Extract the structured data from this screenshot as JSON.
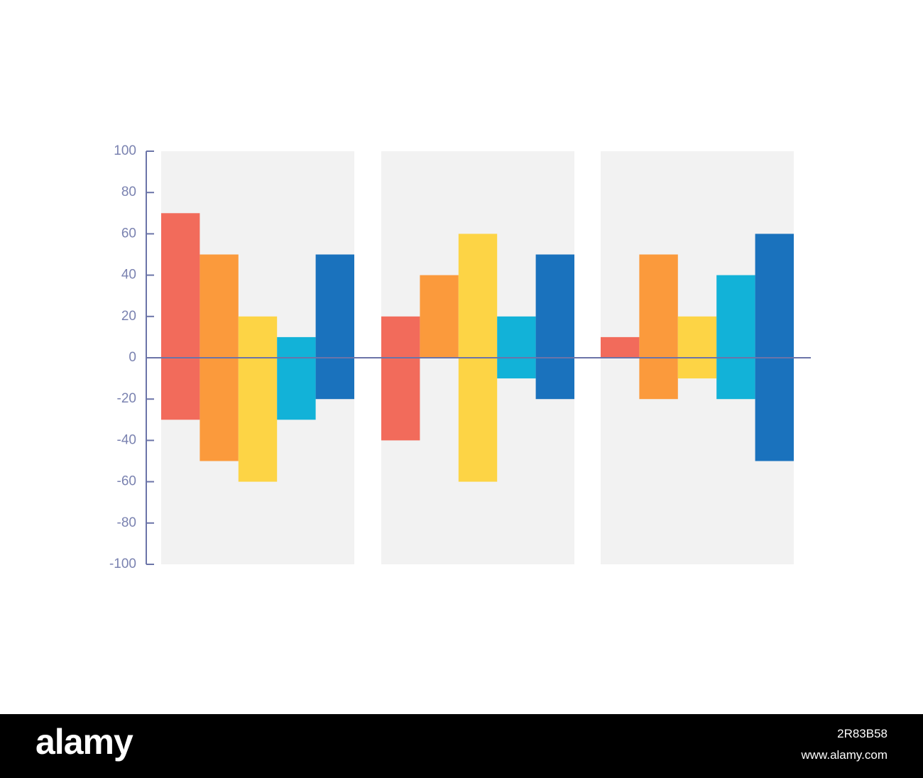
{
  "chart_data": {
    "type": "range_bar",
    "categories": [
      null,
      null,
      null
    ],
    "series": [
      {
        "color": "#f26b5b",
        "low": [
          -30,
          -40,
          0
        ],
        "high": [
          70,
          20,
          10
        ]
      },
      {
        "color": "#fb9a3c",
        "low": [
          -50,
          0,
          -20
        ],
        "high": [
          50,
          40,
          50
        ]
      },
      {
        "color": "#fdd445",
        "low": [
          -60,
          -60,
          -10
        ],
        "high": [
          20,
          60,
          20
        ]
      },
      {
        "color": "#12b2d8",
        "low": [
          -30,
          -10,
          -20
        ],
        "high": [
          10,
          20,
          40
        ]
      },
      {
        "color": "#1a72bd",
        "low": [
          -20,
          -20,
          -50
        ],
        "high": [
          50,
          50,
          60
        ]
      }
    ],
    "ylim": [
      -100,
      100
    ],
    "yticks": [
      -100,
      -80,
      -60,
      -40,
      -20,
      0,
      20,
      40,
      60,
      80,
      100
    ],
    "axis_color": "#6b74a8",
    "panel_color": "#f2f2f2"
  },
  "watermark": {
    "logo": "alamy",
    "image_id": "2R83B58",
    "url": "www.alamy.com"
  }
}
